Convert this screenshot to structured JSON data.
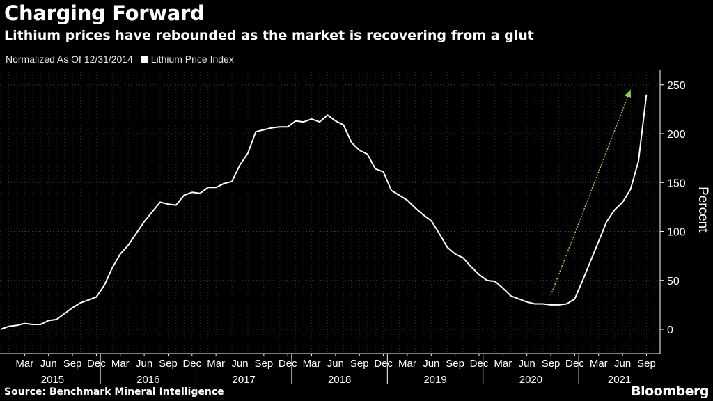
{
  "header": {
    "title": "Charging Forward",
    "subtitle": "Lithium prices have rebounded as the market is recovering from a glut"
  },
  "legend": {
    "note": "Normalized As Of 12/31/2014",
    "series_label": "Lithium Price Index"
  },
  "footer": {
    "source": "Source: Benchmark Mineral Intelligence",
    "brand": "Bloomberg"
  },
  "colors": {
    "background": "#000000",
    "line": "#ffffff",
    "arrow": "#8fd14f",
    "grid": "#444444"
  },
  "chart_data": {
    "type": "line",
    "ylabel": "Percent",
    "ylim": [
      -20,
      255
    ],
    "yticks": [
      0,
      50,
      100,
      150,
      200,
      250
    ],
    "grid": true,
    "axis_side": "right",
    "month_ticks": [
      "Mar",
      "Jun",
      "Sep",
      "Dec",
      "Mar",
      "Jun",
      "Sep",
      "Dec",
      "Mar",
      "Jun",
      "Sep",
      "Dec",
      "Mar",
      "Jun",
      "Sep",
      "Dec",
      "Mar",
      "Jun",
      "Sep",
      "Dec",
      "Mar",
      "Jun",
      "Sep",
      "Dec",
      "Mar",
      "Jun",
      "Sep"
    ],
    "year_ticks": [
      "2015",
      "2016",
      "2017",
      "2018",
      "2019",
      "2020",
      "2021"
    ],
    "series": [
      {
        "name": "Lithium Price Index",
        "x": [
          "2014-12",
          "2015-01",
          "2015-02",
          "2015-03",
          "2015-04",
          "2015-05",
          "2015-06",
          "2015-07",
          "2015-08",
          "2015-09",
          "2015-10",
          "2015-11",
          "2015-12",
          "2016-01",
          "2016-02",
          "2016-03",
          "2016-04",
          "2016-05",
          "2016-06",
          "2016-07",
          "2016-08",
          "2016-09",
          "2016-10",
          "2016-11",
          "2016-12",
          "2017-01",
          "2017-02",
          "2017-03",
          "2017-04",
          "2017-05",
          "2017-06",
          "2017-07",
          "2017-08",
          "2017-09",
          "2017-10",
          "2017-11",
          "2017-12",
          "2018-01",
          "2018-02",
          "2018-03",
          "2018-04",
          "2018-05",
          "2018-06",
          "2018-07",
          "2018-08",
          "2018-09",
          "2018-10",
          "2018-11",
          "2018-12",
          "2019-01",
          "2019-02",
          "2019-03",
          "2019-04",
          "2019-05",
          "2019-06",
          "2019-07",
          "2019-08",
          "2019-09",
          "2019-10",
          "2019-11",
          "2019-12",
          "2020-01",
          "2020-02",
          "2020-03",
          "2020-04",
          "2020-05",
          "2020-06",
          "2020-07",
          "2020-08",
          "2020-09",
          "2020-10",
          "2020-11",
          "2020-12",
          "2021-01",
          "2021-02",
          "2021-03",
          "2021-04",
          "2021-05",
          "2021-06",
          "2021-07",
          "2021-08",
          "2021-09"
        ],
        "values": [
          0,
          3,
          4,
          6,
          5,
          5,
          9,
          10,
          16,
          22,
          27,
          30,
          33,
          45,
          63,
          77,
          86,
          98,
          110,
          120,
          130,
          128,
          127,
          137,
          140,
          139,
          145,
          145,
          149,
          151,
          168,
          180,
          202,
          204,
          206,
          207,
          207,
          213,
          212,
          215,
          212,
          219,
          213,
          209,
          191,
          183,
          179,
          164,
          161,
          142,
          137,
          132,
          124,
          117,
          111,
          98,
          84,
          77,
          73,
          64,
          56,
          50,
          49,
          42,
          34,
          31,
          28,
          26,
          26,
          25,
          25,
          26,
          31,
          50,
          70,
          90,
          110,
          122,
          130,
          143,
          172,
          240
        ]
      }
    ],
    "annotation": {
      "type": "arrow",
      "from": [
        "2020-09",
        35
      ],
      "to": [
        "2021-07",
        245
      ]
    }
  }
}
